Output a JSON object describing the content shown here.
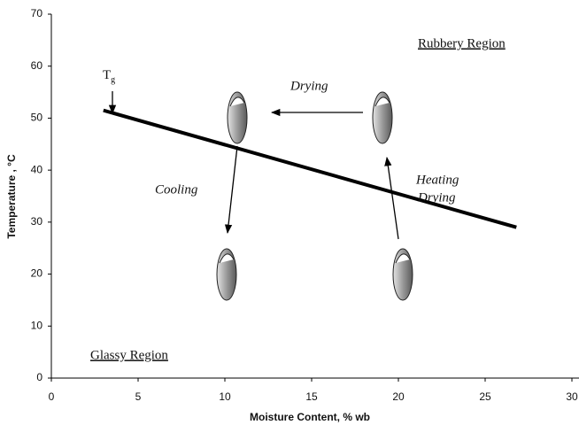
{
  "chart_data": {
    "type": "line",
    "x": [
      3,
      26.8
    ],
    "values": [
      51.5,
      29
    ],
    "color": "#000000",
    "xlim": [
      0,
      30
    ],
    "xticks": [
      0,
      5,
      10,
      15,
      20,
      25,
      30
    ],
    "ylim": [
      0,
      70
    ],
    "yticks": [
      0,
      10,
      20,
      30,
      40,
      50,
      60,
      70
    ],
    "x_label": "Moisture Content, % wb",
    "y_label": "Temperature , °C",
    "annotations": [
      "Rubbery Region",
      "Drying",
      "Cooling",
      "Heating",
      "Drying",
      "Glassy Region"
    ],
    "tg_label": {
      "text": "T",
      "subscript": "g"
    }
  }
}
